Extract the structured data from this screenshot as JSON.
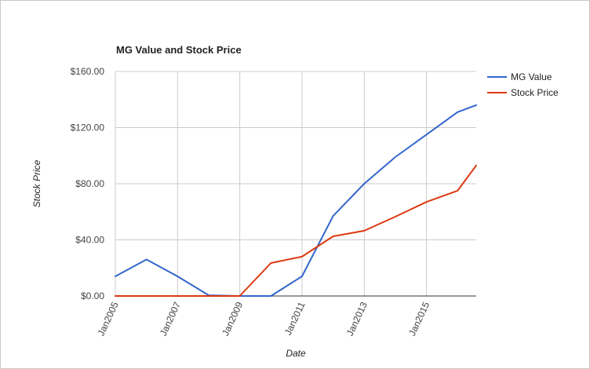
{
  "chart_data": {
    "type": "line",
    "title": "MG Value and Stock Price",
    "xlabel": "Date",
    "ylabel": "Stock Price",
    "x": [
      2005,
      2006,
      2007,
      2008,
      2009,
      2010,
      2011,
      2012,
      2013,
      2014,
      2015,
      2016,
      2016.6
    ],
    "xlim": [
      2005,
      2016.6
    ],
    "ylim": [
      0,
      160
    ],
    "y_ticks": [
      "$0.00",
      "$40.00",
      "$80.00",
      "$120.00",
      "$160.00"
    ],
    "y_tick_values": [
      0,
      40,
      80,
      120,
      160
    ],
    "x_ticks": [
      "Jan2005",
      "Jan2007",
      "Jan2009",
      "Jan2011",
      "Jan2013",
      "Jan2015"
    ],
    "x_tick_values": [
      2005,
      2007,
      2009,
      2011,
      2013,
      2015
    ],
    "grid": true,
    "legend_position": "right",
    "series": [
      {
        "name": "MG Value",
        "color": "#3366cc",
        "values": [
          14,
          26,
          14,
          0.5,
          0,
          0,
          14,
          57,
          80,
          99,
          115,
          131,
          136
        ]
      },
      {
        "name": "Stock Price",
        "color": "#dc3912",
        "values": [
          0,
          0,
          0,
          0,
          0,
          23.5,
          28,
          42.5,
          46.5,
          56.5,
          67,
          75,
          93
        ]
      }
    ]
  }
}
